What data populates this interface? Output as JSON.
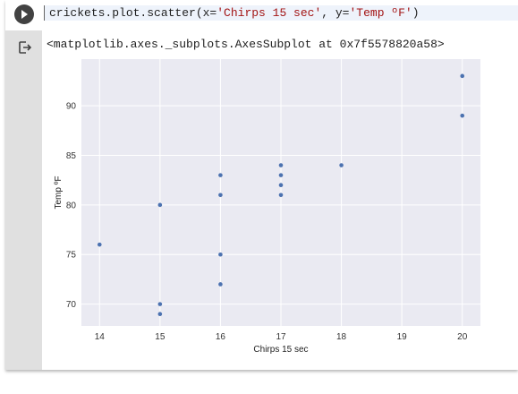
{
  "cell": {
    "code": {
      "prefix": "crickets.plot.scatter(x=",
      "x_arg": "'Chirps 15 sec'",
      "middle": ", y=",
      "y_arg": "'Temp ºF'",
      "suffix": ")"
    },
    "output_text": "<matplotlib.axes._subplots.AxesSubplot at 0x7f5578820a58>",
    "icons": {
      "run": "play-icon",
      "output": "output-arrow-icon"
    }
  },
  "colors": {
    "plot_background": "#eaeaf2",
    "grid": "#ffffff",
    "point": "#4c72b0",
    "string_literal": "#a31515"
  },
  "chart_data": {
    "type": "scatter",
    "xlabel": "Chirps 15 sec",
    "ylabel": "Temp ºF",
    "xlim": [
      13.7,
      20.3
    ],
    "ylim": [
      67.8,
      94.7
    ],
    "xticks": [
      14,
      15,
      16,
      17,
      18,
      19,
      20
    ],
    "yticks": [
      70,
      75,
      80,
      85,
      90
    ],
    "grid": true,
    "points": [
      {
        "x": 14,
        "y": 76
      },
      {
        "x": 15,
        "y": 80
      },
      {
        "x": 15,
        "y": 70
      },
      {
        "x": 15,
        "y": 69
      },
      {
        "x": 16,
        "y": 83
      },
      {
        "x": 16,
        "y": 81
      },
      {
        "x": 16,
        "y": 75
      },
      {
        "x": 16,
        "y": 72
      },
      {
        "x": 17,
        "y": 84
      },
      {
        "x": 17,
        "y": 83
      },
      {
        "x": 17,
        "y": 82
      },
      {
        "x": 17,
        "y": 81
      },
      {
        "x": 18,
        "y": 84
      },
      {
        "x": 20,
        "y": 93
      },
      {
        "x": 20,
        "y": 89
      }
    ]
  }
}
